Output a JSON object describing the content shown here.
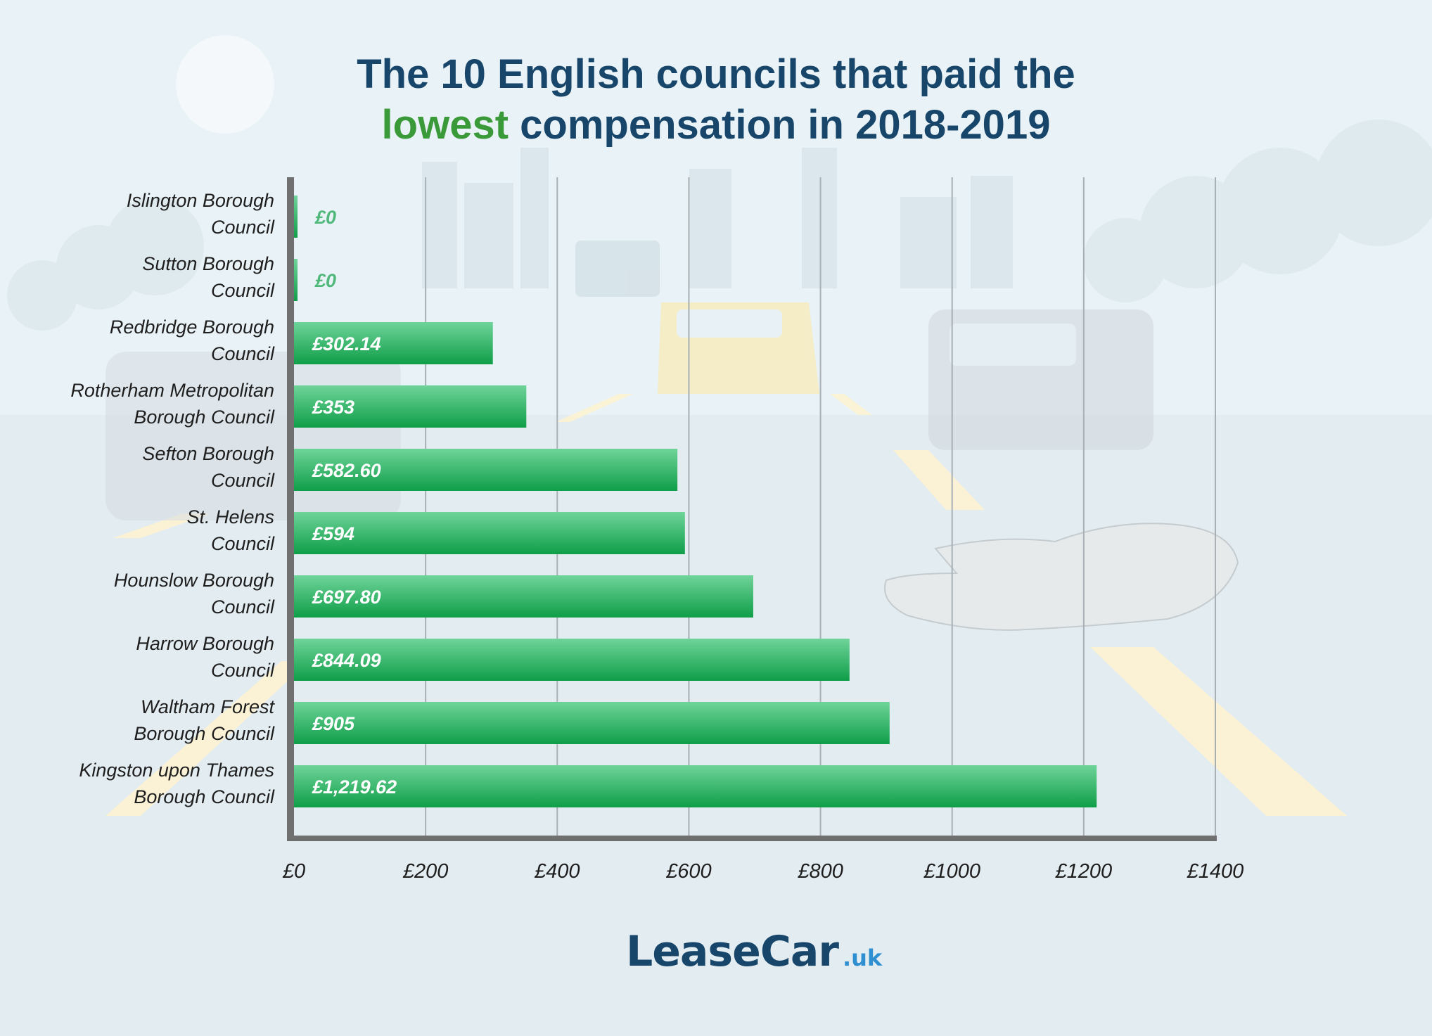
{
  "title": {
    "line1": "The 10 English councils that paid the",
    "highlight": "lowest",
    "line2_rest": " compensation in 2018-2019"
  },
  "colors": {
    "title": "#17466a",
    "highlight": "#3a9a3a",
    "bar_top": "#6fd49a",
    "bar_bottom": "#0f9e48",
    "axis": "#707070",
    "grid": "#a8b0b5"
  },
  "chart_data": {
    "type": "bar",
    "orientation": "horizontal",
    "categories": [
      [
        "Islington Borough",
        "Council"
      ],
      [
        "Sutton Borough",
        "Council"
      ],
      [
        "Redbridge Borough",
        "Council"
      ],
      [
        "Rotherham Metropolitan",
        "Borough Council"
      ],
      [
        "Sefton Borough",
        "Council"
      ],
      [
        "St. Helens",
        "Council"
      ],
      [
        "Hounslow Borough",
        "Council"
      ],
      [
        "Harrow Borough",
        "Council"
      ],
      [
        "Waltham Forest",
        "Borough Council"
      ],
      [
        "Kingston upon Thames",
        "Borough Council"
      ]
    ],
    "values": [
      0,
      0,
      302.14,
      353,
      582.6,
      594,
      697.8,
      844.09,
      905,
      1219.62
    ],
    "value_labels": [
      "£0",
      "£0",
      "£302.14",
      "£353",
      "£582.60",
      "£594",
      "£697.80",
      "£844.09",
      "£905",
      "£1,219.62"
    ],
    "xlim": [
      0,
      1400
    ],
    "xticks": [
      0,
      200,
      400,
      600,
      800,
      1000,
      1200,
      1400
    ],
    "xtick_labels": [
      "£0",
      "£200",
      "£400",
      "£600",
      "£800",
      "£1000",
      "£1200",
      "£1400"
    ],
    "grid": true
  },
  "logo": {
    "main": "LeaseCar",
    "tld": ".uk"
  }
}
